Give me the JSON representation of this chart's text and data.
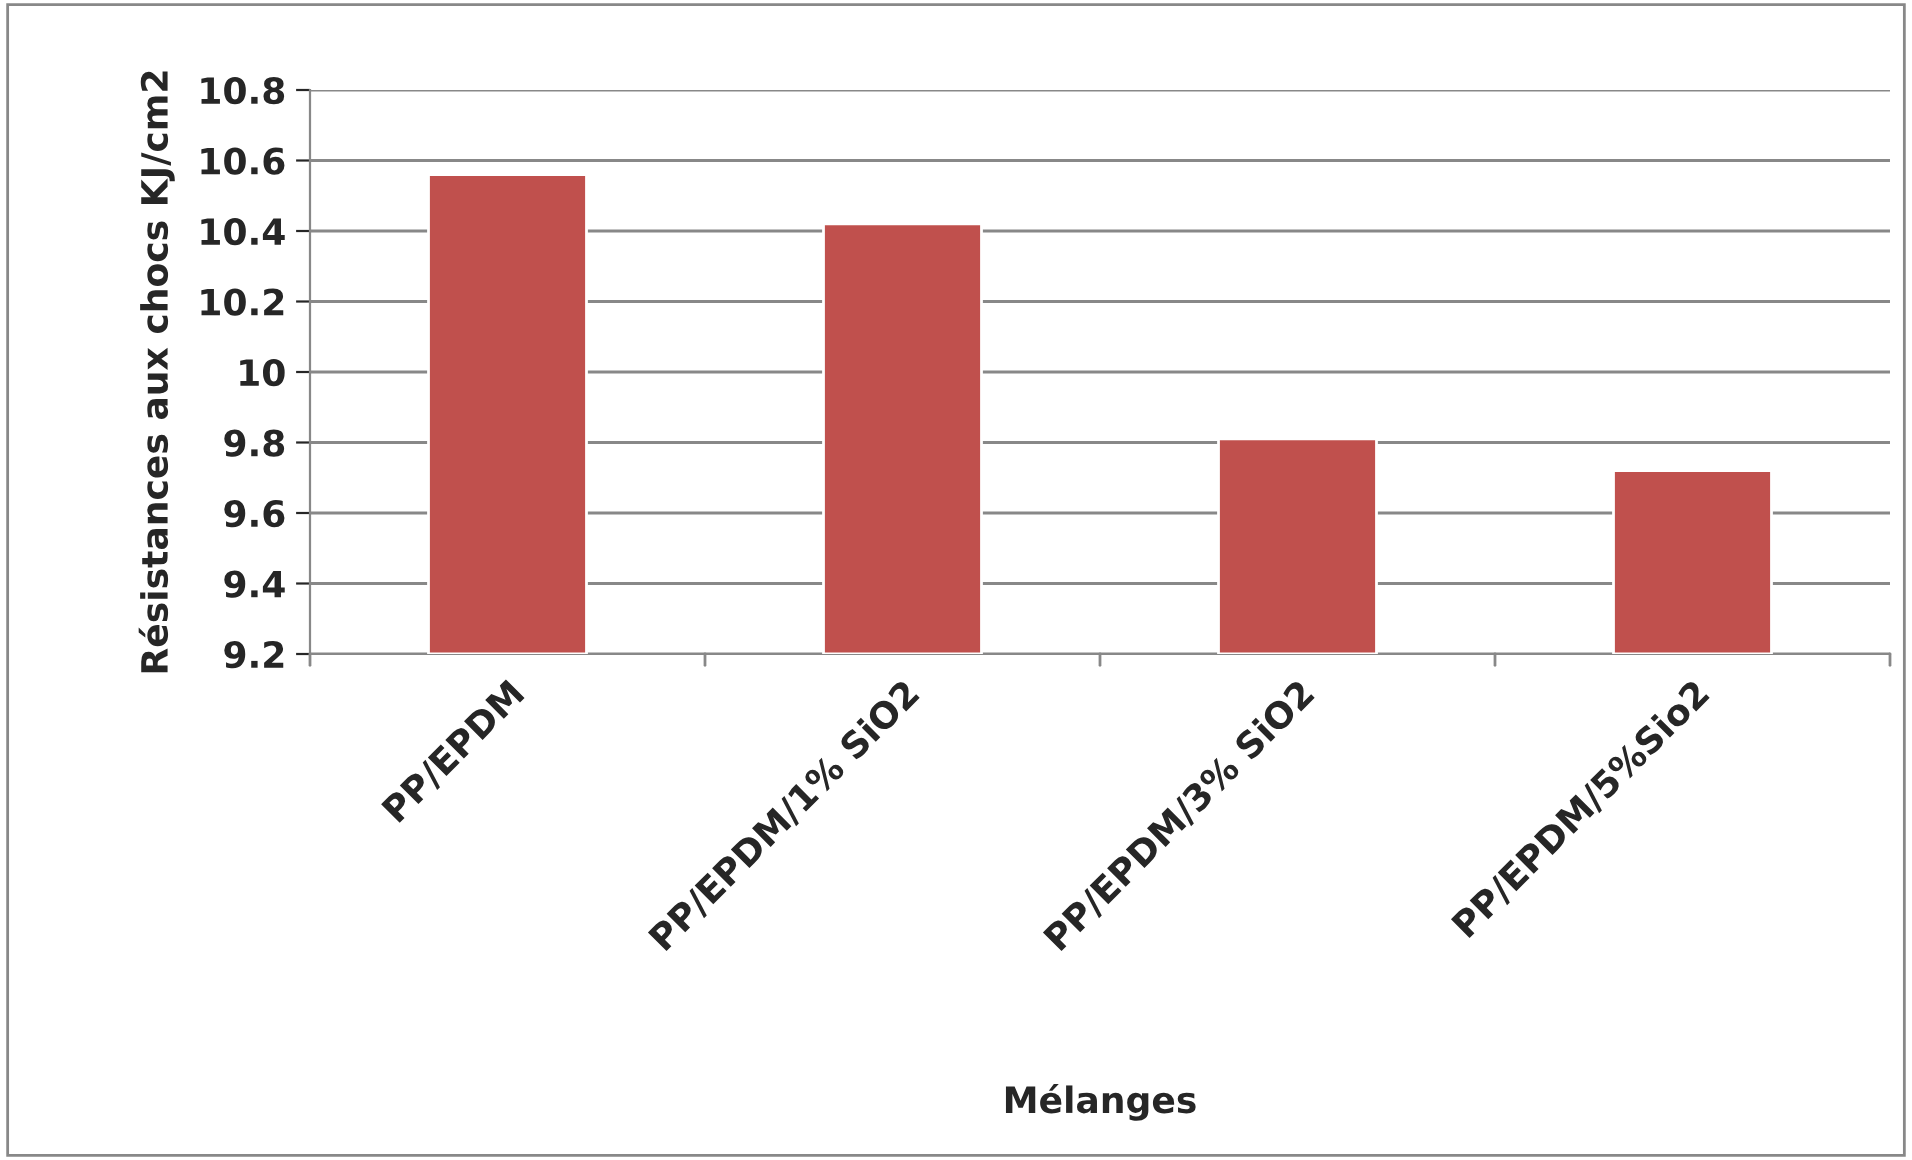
{
  "chart_data": {
    "type": "bar",
    "xlabel": "Mélanges",
    "ylabel": "Résistances aux chocs KJ/cm2",
    "categories": [
      "PP/EPDM",
      "PP/EPDM/1% SiO2",
      "PP/EPDM/3% SiO2",
      "PP/EPDM/5%Sio2"
    ],
    "values": [
      10.56,
      10.42,
      9.81,
      9.72
    ],
    "color": "#c0504d",
    "ylim": [
      9.2,
      10.8
    ],
    "yticks": [
      9.2,
      9.4,
      9.6,
      9.8,
      10,
      10.2,
      10.4,
      10.6,
      10.8
    ],
    "grid": "y"
  }
}
